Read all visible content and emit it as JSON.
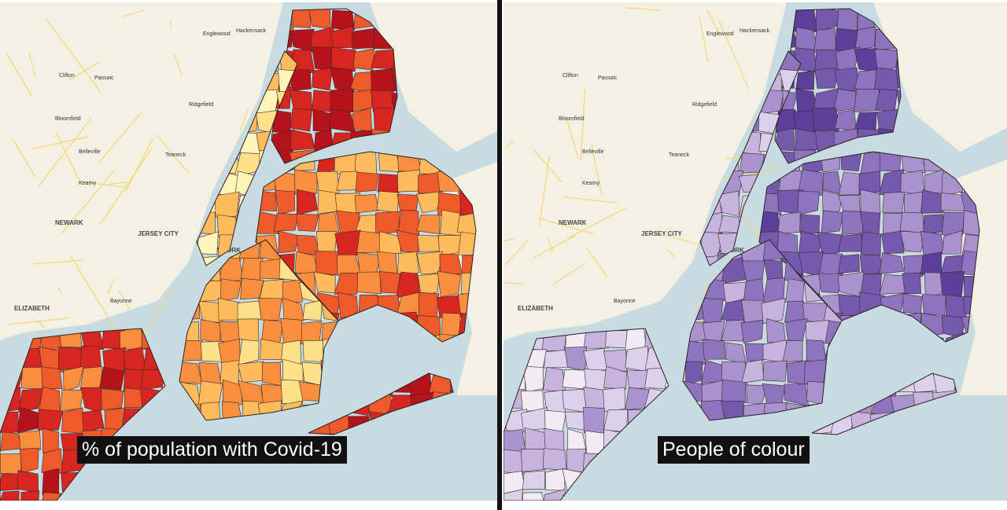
{
  "panels": [
    {
      "caption": "% of population with Covid-19",
      "place_labels": [
        "Englewood",
        "Hackensack",
        "Clifton",
        "Passaic",
        "Ridgefield",
        "Bloomfield",
        "Belleville",
        "Teaneck",
        "Kearny",
        "NEWARK",
        "JERSEY CITY",
        "NEW YORK",
        "ELIZABETH",
        "Bayonne"
      ]
    },
    {
      "caption": "People of colour",
      "place_labels": [
        "Englewood",
        "Hackensack",
        "Clifton",
        "Passaic",
        "Ridgefield",
        "Bloomfield",
        "Belleville",
        "Teaneck",
        "Kearny",
        "NEWARK",
        "JERSEY CITY",
        "NEW YORK",
        "ELIZABETH",
        "Bayonne"
      ]
    }
  ]
}
